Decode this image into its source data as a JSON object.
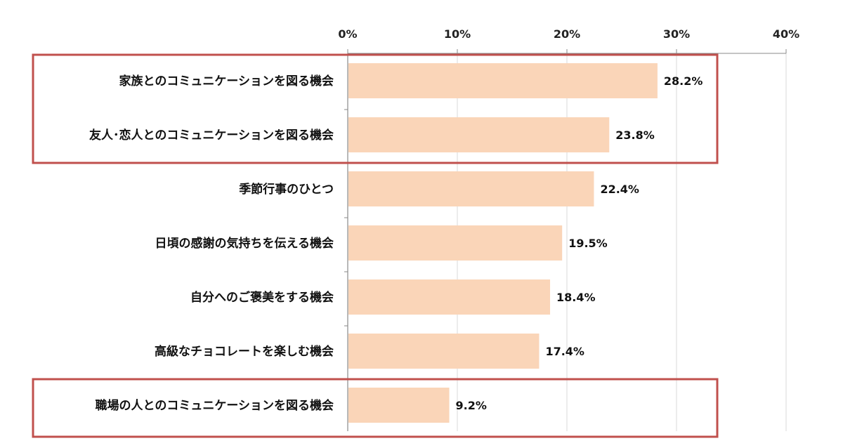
{
  "chart_data": {
    "type": "bar",
    "orientation": "horizontal",
    "categories": [
      "家族とのコミュニケーションを図る機会",
      "友人･恋人とのコミュニケーションを図る機会",
      "季節行事のひとつ",
      "日頃の感謝の気持ちを伝える機会",
      "自分へのご褒美をする機会",
      "高級なチョコレートを楽しむ機会",
      "職場の人とのコミュニケーションを図る機会"
    ],
    "values": [
      28.2,
      23.8,
      22.4,
      19.5,
      18.4,
      17.4,
      9.2
    ],
    "value_labels": [
      "28.2%",
      "23.8%",
      "22.4%",
      "19.5%",
      "18.4%",
      "17.4%",
      "9.2%"
    ],
    "xlim": [
      0,
      40
    ],
    "x_ticks": [
      0,
      10,
      20,
      30,
      40
    ],
    "x_tick_labels": [
      "0%",
      "10%",
      "20%",
      "30%",
      "40%"
    ],
    "x_axis_position": "top",
    "grid": true,
    "highlight_groups": [
      [
        0,
        1
      ],
      [
        6
      ]
    ],
    "colors": {
      "bar": "#fad5b8",
      "highlight": "#c0504d",
      "grid": "#d9d9d9",
      "axis": "#888888"
    }
  }
}
